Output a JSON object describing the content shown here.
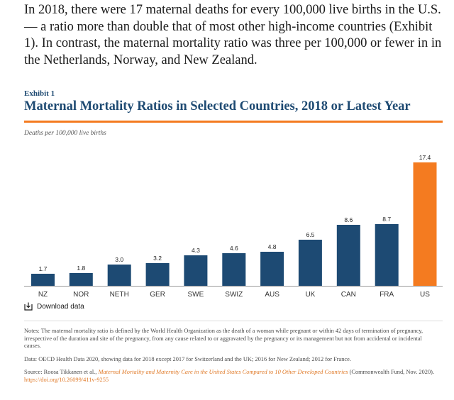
{
  "intro_text": "In 2018, there were 17 maternal deaths for every 100,000 live births in the U.S. — a ratio more than double that of most other high-income countries (Exhibit 1). In contrast, the maternal mortality ratio was three per 100,000 or fewer in in the Netherlands, Norway, and New Zealand.",
  "exhibit_label": "Exhibit 1",
  "download_label": "Download data",
  "notes": {
    "definition": "Notes: The maternal mortality ratio is defined by the World Health Organization as the death of a woman while pregnant or within 42 days of termination of pregnancy, irrespective of the duration and site of the pregnancy, from any cause related to or aggravated by the pregnancy or its management but not from accidental or incidental causes.",
    "data_source": "Data: OECD Health Data 2020, showing data for 2018 except 2017 for Switzerland and the UK; 2016 for New Zealand; 2012 for France.",
    "source_prefix": "Source: Roosa Tikkanen et al., ",
    "source_title": "Maternal Mortality and Maternity Care in the United States Compared to 10 Other Developed Countries",
    "source_suffix": " (Commonwealth Fund, Nov. 2020). ",
    "source_link": "https://doi.org/10.26099/411v-9255"
  },
  "colors": {
    "bar_default": "#1d4a73",
    "bar_highlight": "#f47b20",
    "title": "#1e4a72",
    "rule": "#f47b20"
  },
  "chart_data": {
    "type": "bar",
    "title": "Maternal Mortality Ratios in Selected Countries, 2018 or Latest Year",
    "ylabel": "Deaths per 100,000 live births",
    "xlabel": "",
    "categories": [
      "NZ",
      "NOR",
      "NETH",
      "GER",
      "SWE",
      "SWIZ",
      "AUS",
      "UK",
      "CAN",
      "FRA",
      "US"
    ],
    "values": [
      1.7,
      1.8,
      3.0,
      3.2,
      4.3,
      4.6,
      4.8,
      6.5,
      8.6,
      8.7,
      17.4
    ],
    "value_labels": [
      "1.7",
      "1.8",
      "3.0",
      "3.2",
      "4.3",
      "4.6",
      "4.8",
      "6.5",
      "8.6",
      "8.7",
      "17.4"
    ],
    "highlight": [
      "US"
    ],
    "ylim": [
      0,
      17.4
    ],
    "grid": false,
    "legend": "none"
  }
}
